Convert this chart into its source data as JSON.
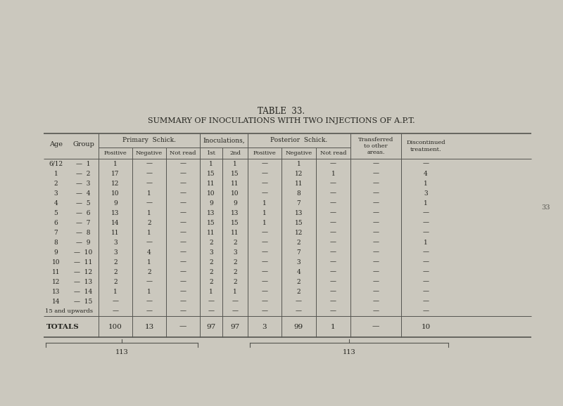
{
  "title1": "TABLE 33.",
  "title2": "SUMMARY OF INOCULATIONS WITH TWO INJECTIONS OF A.P.T.",
  "bg_color": "#c8c5bc",
  "data_rows": [
    [
      "6/12",
      "—  1",
      "1",
      "—",
      "—",
      "1",
      "1",
      "—",
      "1",
      "—",
      "—",
      "—"
    ],
    [
      "1",
      "—  2",
      "17",
      "—",
      "—",
      "15",
      "15",
      "—",
      "12",
      "1",
      "—",
      "4"
    ],
    [
      "2",
      "—  3",
      "12",
      "—",
      "—",
      "11",
      "11",
      "—",
      "11",
      "—",
      "—",
      "1"
    ],
    [
      "3",
      "—  4",
      "10",
      "1",
      "—",
      "10",
      "10",
      "—",
      "8",
      "—",
      "—",
      "3"
    ],
    [
      "4",
      "—  5",
      "9",
      "—",
      "—",
      "9",
      "9",
      "1",
      "7",
      "—",
      "—",
      "1"
    ],
    [
      "5",
      "—  6",
      "13",
      "1",
      "—",
      "13",
      "13",
      "1",
      "13",
      "—",
      "—",
      "—"
    ],
    [
      "6",
      "—  7",
      "14",
      "2",
      "—",
      "15",
      "15",
      "1",
      "15",
      "—",
      "—",
      "—"
    ],
    [
      "7",
      "—  8",
      "11",
      "1",
      "—",
      "11",
      "11",
      "—",
      "12",
      "—",
      "—",
      "—"
    ],
    [
      "8",
      "—  9",
      "3",
      "—",
      "—",
      "2",
      "2",
      "—",
      "2",
      "—",
      "—",
      "1"
    ],
    [
      "9",
      "—  10",
      "3",
      "4",
      "—",
      "3",
      "3",
      "—",
      "7",
      "—",
      "—",
      "—"
    ],
    [
      "10",
      "—  11",
      "2",
      "1",
      "—",
      "2",
      "2",
      "—",
      "3",
      "—",
      "—",
      "—"
    ],
    [
      "11",
      "—  12",
      "2",
      "2",
      "—",
      "2",
      "2",
      "—",
      "4",
      "—",
      "—",
      "—"
    ],
    [
      "12",
      "—  13",
      "2",
      "—",
      "—",
      "2",
      "2",
      "—",
      "2",
      "—",
      "—",
      "—"
    ],
    [
      "13",
      "—  14",
      "1",
      "1",
      "—",
      "1",
      "1",
      "—",
      "2",
      "—",
      "—",
      "—"
    ],
    [
      "14",
      "—  15",
      "—",
      "—",
      "—",
      "—",
      "—",
      "—",
      "—",
      "—",
      "—",
      "—"
    ],
    [
      "15 and upwards",
      "",
      "—",
      "—",
      "—",
      "—",
      "—",
      "—",
      "—",
      "—",
      "—",
      "—"
    ]
  ],
  "totals_row": [
    "TOTALS",
    "",
    "100",
    "13",
    "—",
    "97",
    "97",
    "3",
    "99",
    "1",
    "—",
    "10"
  ],
  "brace_left_label": "113",
  "brace_right_label": "113",
  "page_number": "33"
}
